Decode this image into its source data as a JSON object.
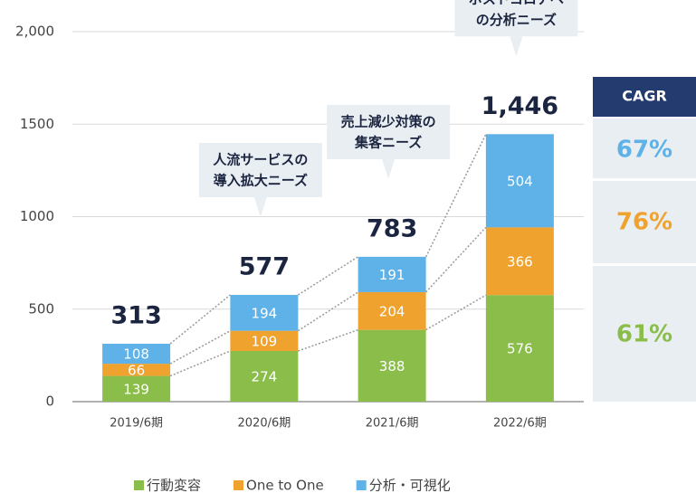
{
  "chart_data": {
    "type": "stacked_bar",
    "categories": [
      "2019/6期",
      "2020/6期",
      "2021/6期",
      "2022/6期"
    ],
    "series": [
      {
        "name": "行動変容",
        "color": "#8bbd4b",
        "values": [
          139,
          274,
          388,
          576
        ]
      },
      {
        "name": "One to One",
        "color": "#f0a22e",
        "values": [
          66,
          109,
          204,
          366
        ]
      },
      {
        "name": "分析・可視化",
        "color": "#5eb2e8",
        "values": [
          108,
          194,
          191,
          504
        ]
      }
    ],
    "totals": [
      313,
      577,
      783,
      1446
    ],
    "total_labels": [
      "313",
      "577",
      "783",
      "1,446"
    ],
    "ylim": [
      0,
      2000
    ],
    "yticks": [
      0,
      500,
      1000,
      1500,
      {
        "value": 2000,
        "label": "2,000"
      }
    ],
    "grid": true,
    "annotations": [
      {
        "bar": 1,
        "lines": [
          "人流サービスの",
          "導入拡大ニーズ"
        ]
      },
      {
        "bar": 2,
        "lines": [
          "売上減少対策の",
          "集客ニーズ"
        ]
      },
      {
        "bar": 3,
        "lines": [
          "ポストコロナへ",
          "の分析ニーズ"
        ]
      }
    ],
    "cagr": {
      "header": "CAGR",
      "cells": [
        "67%",
        "76%",
        "61%"
      ]
    },
    "legend": "bottom"
  }
}
